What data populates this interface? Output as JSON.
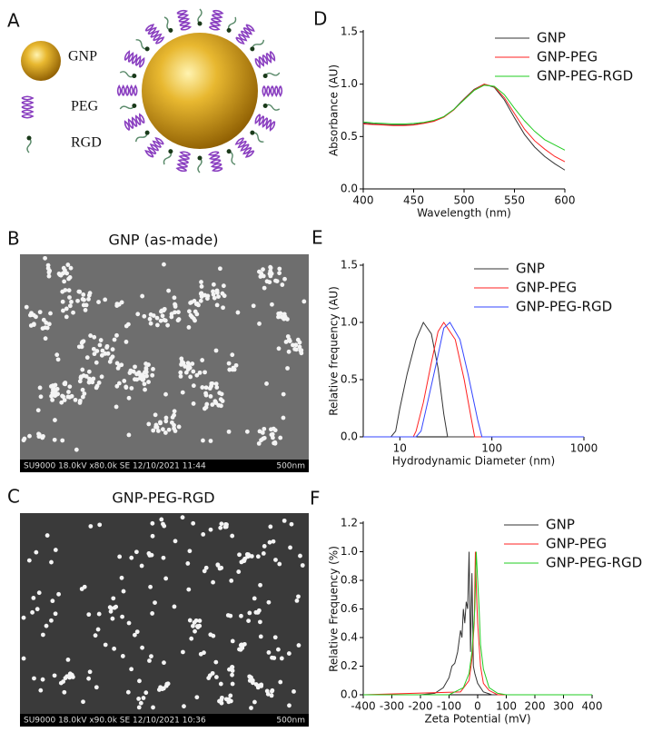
{
  "panel_a": {
    "label": "A",
    "legend": [
      "GNP",
      "PEG",
      "RGD"
    ]
  },
  "panel_b": {
    "label": "B",
    "title": "GNP (as-made)",
    "footer": "SU9000 18.0kV x80.0k SE 12/10/2021 11:44",
    "scale_bar": "500nm"
  },
  "panel_c": {
    "label": "C",
    "title": "GNP-PEG-RGD",
    "footer": "SU9000 18.0kV x90.0k SE 12/10/2021 10:36",
    "scale_bar": "500nm"
  },
  "chart_data": [
    {
      "type": "line",
      "panel_label": "D",
      "x_label": "Wavelength (nm)",
      "y_label": "Absorbance (AU)",
      "legend": "upper right",
      "xlim": [
        400,
        600
      ],
      "xticks": [
        400,
        450,
        500,
        550,
        600
      ],
      "ylim": [
        0,
        1.5
      ],
      "yticks": [
        {
          "value": 0,
          "label": "0.0"
        },
        {
          "value": 0.5,
          "label": "0.5"
        },
        {
          "value": 1,
          "label": "1.0"
        },
        {
          "value": 1.5,
          "label": "1.5"
        }
      ],
      "series": [
        {
          "name": "GNP",
          "color": "#333333",
          "x": [
            400,
            410,
            420,
            430,
            440,
            450,
            460,
            470,
            480,
            490,
            500,
            510,
            520,
            530,
            540,
            550,
            560,
            570,
            580,
            590,
            600
          ],
          "values": [
            0.63,
            0.62,
            0.615,
            0.61,
            0.61,
            0.615,
            0.63,
            0.65,
            0.69,
            0.76,
            0.86,
            0.95,
            1.0,
            0.97,
            0.85,
            0.68,
            0.52,
            0.4,
            0.31,
            0.24,
            0.18
          ]
        },
        {
          "name": "GNP-PEG",
          "color": "#ff2020",
          "x": [
            400,
            410,
            420,
            430,
            440,
            450,
            460,
            470,
            480,
            490,
            500,
            510,
            520,
            530,
            540,
            550,
            560,
            570,
            580,
            590,
            600
          ],
          "values": [
            0.62,
            0.615,
            0.61,
            0.605,
            0.605,
            0.61,
            0.625,
            0.645,
            0.685,
            0.755,
            0.855,
            0.945,
            1.0,
            0.975,
            0.87,
            0.72,
            0.57,
            0.46,
            0.38,
            0.31,
            0.26
          ]
        },
        {
          "name": "GNP-PEG-RGD",
          "color": "#22cc22",
          "x": [
            400,
            410,
            420,
            430,
            440,
            450,
            460,
            470,
            480,
            490,
            500,
            510,
            520,
            530,
            540,
            550,
            560,
            570,
            580,
            590,
            600
          ],
          "values": [
            0.64,
            0.63,
            0.625,
            0.62,
            0.62,
            0.625,
            0.635,
            0.655,
            0.69,
            0.76,
            0.85,
            0.94,
            0.99,
            0.98,
            0.9,
            0.77,
            0.65,
            0.55,
            0.47,
            0.42,
            0.37
          ]
        }
      ]
    },
    {
      "type": "line",
      "panel_label": "E",
      "x_label": "Hydrodynamic Diameter (nm)",
      "y_label": "Relative frequency (AU)",
      "legend": "upper right",
      "xscale": "log",
      "xlim": [
        4,
        1000
      ],
      "xticks": [
        10,
        100,
        1000
      ],
      "ylim": [
        0,
        1.5
      ],
      "yticks": [
        {
          "value": 0,
          "label": "0.0"
        },
        {
          "value": 0.5,
          "label": "0.5"
        },
        {
          "value": 1,
          "label": "1.0"
        },
        {
          "value": 1.5,
          "label": "1.5"
        }
      ],
      "series": [
        {
          "name": "GNP",
          "color": "#333333",
          "x": [
            4,
            8,
            9,
            10,
            12,
            15,
            18,
            22,
            26,
            30,
            33,
            1000
          ],
          "values": [
            0,
            0,
            0.05,
            0.25,
            0.55,
            0.85,
            1.0,
            0.9,
            0.6,
            0.2,
            0,
            0
          ]
        },
        {
          "name": "GNP-PEG",
          "color": "#ff2020",
          "x": [
            4,
            14,
            15,
            18,
            22,
            26,
            30,
            40,
            50,
            60,
            65,
            1000
          ],
          "values": [
            0,
            0,
            0.05,
            0.3,
            0.65,
            0.92,
            1.0,
            0.85,
            0.5,
            0.15,
            0,
            0
          ]
        },
        {
          "name": "GNP-PEG-RGD",
          "color": "#3344ff",
          "x": [
            4,
            15,
            17,
            20,
            25,
            30,
            35,
            45,
            55,
            70,
            78,
            1000
          ],
          "values": [
            0,
            0,
            0.05,
            0.3,
            0.65,
            0.95,
            1.0,
            0.85,
            0.55,
            0.15,
            0,
            0
          ]
        }
      ]
    },
    {
      "type": "line",
      "panel_label": "F",
      "x_label": "Zeta Potential (mV)",
      "y_label": "Relative Frequency (%)",
      "legend": "upper right",
      "xlim": [
        -400,
        400
      ],
      "xticks": [
        -400,
        -300,
        -200,
        -100,
        0,
        100,
        200,
        300,
        400
      ],
      "ylim": [
        0,
        1.2
      ],
      "yticks": [
        {
          "value": 0,
          "label": "0.0"
        },
        {
          "value": 0.2,
          "label": "0.2"
        },
        {
          "value": 0.4,
          "label": "0.4"
        },
        {
          "value": 0.6,
          "label": "0.6"
        },
        {
          "value": 0.8,
          "label": "0.8"
        },
        {
          "value": 1,
          "label": "1.0"
        },
        {
          "value": 1.2,
          "label": "1.2"
        }
      ],
      "series": [
        {
          "name": "GNP",
          "color": "#333333",
          "x": [
            -400,
            -200,
            -150,
            -120,
            -100,
            -90,
            -80,
            -70,
            -60,
            -55,
            -50,
            -45,
            -40,
            -35,
            -30,
            -25,
            -20,
            -15,
            -10,
            0,
            20,
            50,
            400
          ],
          "values": [
            0,
            0,
            0.01,
            0.05,
            0.12,
            0.2,
            0.22,
            0.3,
            0.45,
            0.4,
            0.6,
            0.5,
            0.65,
            0.6,
            1.0,
            0.3,
            0.85,
            0.2,
            0.15,
            0.08,
            0.02,
            0,
            0
          ]
        },
        {
          "name": "GNP-PEG",
          "color": "#ff2020",
          "x": [
            -400,
            -60,
            -30,
            -20,
            -12,
            -8,
            -4,
            0,
            10,
            20,
            40,
            70,
            400
          ],
          "values": [
            0,
            0.02,
            0.1,
            0.25,
            0.5,
            1.0,
            0.7,
            0.5,
            0.2,
            0.08,
            0.03,
            0,
            0
          ]
        },
        {
          "name": "GNP-PEG-RGD",
          "color": "#22cc22",
          "x": [
            -400,
            -100,
            -50,
            -30,
            -20,
            -10,
            -5,
            0,
            5,
            10,
            20,
            40,
            70,
            100,
            400
          ],
          "values": [
            0,
            0,
            0.05,
            0.15,
            0.3,
            0.6,
            1.0,
            0.8,
            0.6,
            0.35,
            0.18,
            0.05,
            0.01,
            0,
            0
          ]
        }
      ]
    }
  ]
}
